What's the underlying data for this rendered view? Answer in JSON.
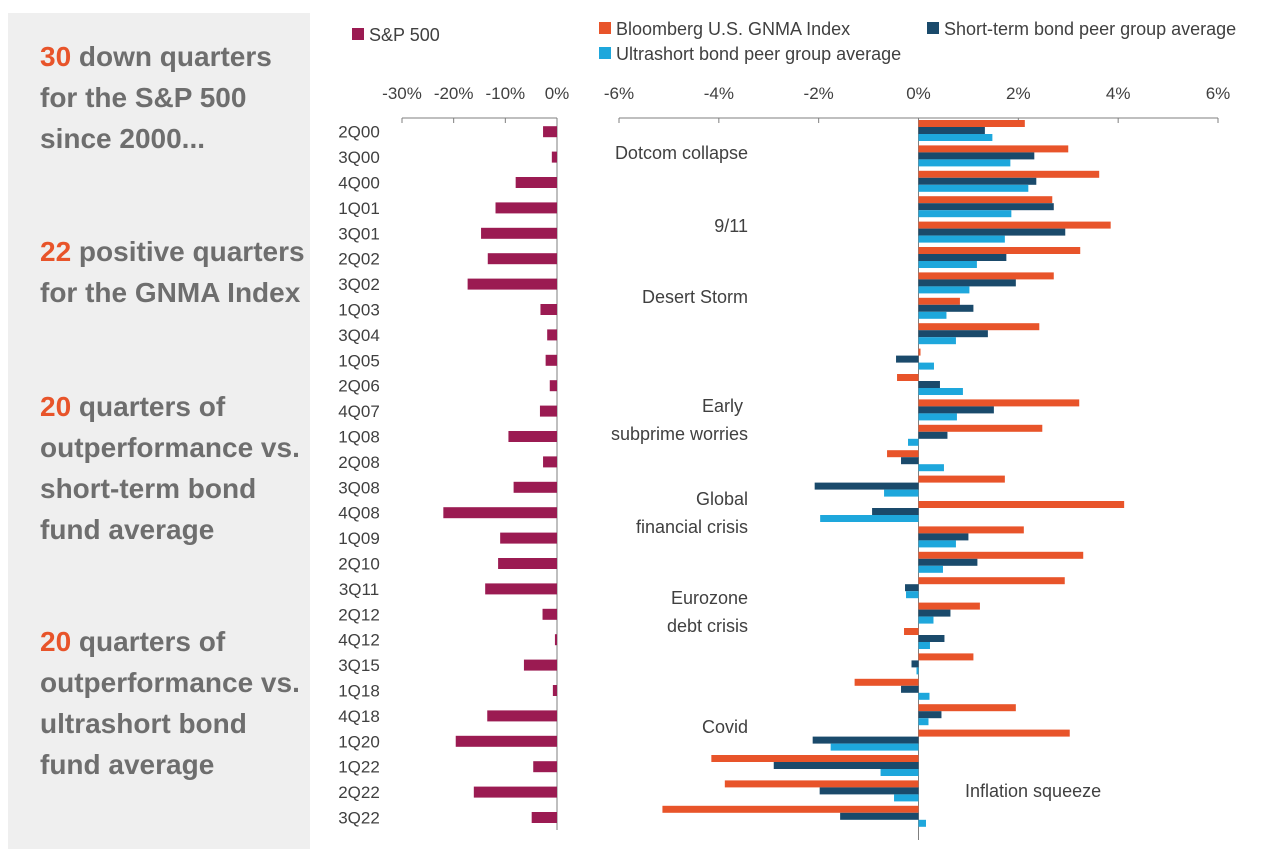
{
  "sidebar": {
    "stats": [
      {
        "num": "30",
        "text": " down quarters for the S&P 500 since 2000..."
      },
      {
        "num": "22",
        "text": " positive quarters for the GNMA Index"
      },
      {
        "num": "20",
        "text": " quarters of outperformance vs. short-term bond fund average"
      },
      {
        "num": "20",
        "text": " quarters of outperformance vs. ultrashort bond fund average"
      }
    ]
  },
  "colors": {
    "sp500": "#9b1b52",
    "gnma": "#e8542a",
    "shortterm": "#1a4a6b",
    "ultrashort": "#1ea7dc",
    "text": "#404040",
    "axis": "#7f7f7f"
  },
  "chart_data": [
    {
      "type": "bar",
      "orientation": "horizontal",
      "title": "",
      "legend": [
        "S&P 500"
      ],
      "xlim": [
        -30,
        0
      ],
      "ticks": [
        -30,
        -20,
        -10,
        0
      ],
      "tick_labels": [
        "-30%",
        "-20%",
        "-10%",
        "0%"
      ],
      "categories": [
        "2Q00",
        "3Q00",
        "4Q00",
        "1Q01",
        "3Q01",
        "2Q02",
        "3Q02",
        "1Q03",
        "3Q04",
        "1Q05",
        "2Q06",
        "4Q07",
        "1Q08",
        "2Q08",
        "3Q08",
        "4Q08",
        "1Q09",
        "2Q10",
        "3Q11",
        "2Q12",
        "4Q12",
        "3Q15",
        "1Q18",
        "4Q18",
        "1Q20",
        "1Q22",
        "2Q22",
        "3Q22"
      ],
      "series": [
        {
          "name": "S&P 500",
          "values": [
            -2.7,
            -1.0,
            -8.0,
            -11.9,
            -14.7,
            -13.4,
            -17.3,
            -3.2,
            -1.9,
            -2.2,
            -1.4,
            -3.3,
            -9.4,
            -2.7,
            -8.4,
            -22.0,
            -11.0,
            -11.4,
            -13.9,
            -2.8,
            -0.4,
            -6.4,
            -0.8,
            -13.5,
            -19.6,
            -4.6,
            -16.1,
            -4.9
          ]
        }
      ]
    },
    {
      "type": "bar",
      "orientation": "horizontal",
      "title": "",
      "legend": [
        "Bloomberg U.S. GNMA Index",
        "Short-term bond peer group average",
        "Ultrashort bond peer group average"
      ],
      "xlim": [
        -6,
        6
      ],
      "ticks": [
        -6,
        -4,
        -2,
        0,
        2,
        4,
        6
      ],
      "tick_labels": [
        "-6%",
        "-4%",
        "-2%",
        "0%",
        "2%",
        "4%",
        "6%"
      ],
      "categories": [
        "2Q00",
        "3Q00",
        "4Q00",
        "1Q01",
        "3Q01",
        "2Q02",
        "3Q02",
        "1Q03",
        "3Q04",
        "1Q05",
        "2Q06",
        "4Q07",
        "1Q08",
        "2Q08",
        "3Q08",
        "4Q08",
        "1Q09",
        "2Q10",
        "3Q11",
        "2Q12",
        "4Q12",
        "3Q15",
        "1Q18",
        "4Q18",
        "1Q20",
        "1Q22",
        "2Q22",
        "3Q22"
      ],
      "series": [
        {
          "name": "Bloomberg U.S. GNMA Index",
          "values": [
            2.13,
            3.0,
            3.62,
            2.68,
            3.85,
            3.24,
            2.71,
            0.83,
            2.42,
            0.04,
            -0.43,
            3.22,
            2.48,
            -0.63,
            1.73,
            4.12,
            2.11,
            3.3,
            2.93,
            1.23,
            -0.29,
            1.1,
            -1.28,
            1.95,
            3.03,
            -4.15,
            -3.88,
            -5.13
          ]
        },
        {
          "name": "Short-term bond peer group average",
          "values": [
            1.33,
            2.32,
            2.36,
            2.71,
            2.94,
            1.76,
            1.95,
            1.1,
            1.39,
            -0.45,
            0.43,
            1.51,
            0.58,
            -0.35,
            -2.08,
            -0.93,
            1.0,
            1.18,
            -0.27,
            0.64,
            0.52,
            -0.14,
            -0.35,
            0.46,
            -2.12,
            -2.9,
            -1.98,
            -1.57
          ]
        },
        {
          "name": "Ultrashort bond peer group average",
          "values": [
            1.48,
            1.84,
            2.2,
            1.86,
            1.73,
            1.17,
            1.02,
            0.56,
            0.75,
            0.31,
            0.89,
            0.77,
            -0.21,
            0.51,
            -0.69,
            -1.97,
            0.75,
            0.49,
            -0.25,
            0.3,
            0.23,
            -0.04,
            0.22,
            0.2,
            -1.76,
            -0.76,
            -0.49,
            0.15
          ]
        }
      ],
      "annotations": [
        "Dotcom collapse",
        "9/11",
        "Desert Storm",
        "Early",
        "subprime worries",
        "Global",
        "financial crisis",
        "Eurozone",
        "debt crisis",
        "Covid",
        "Inflation squeeze"
      ]
    }
  ]
}
